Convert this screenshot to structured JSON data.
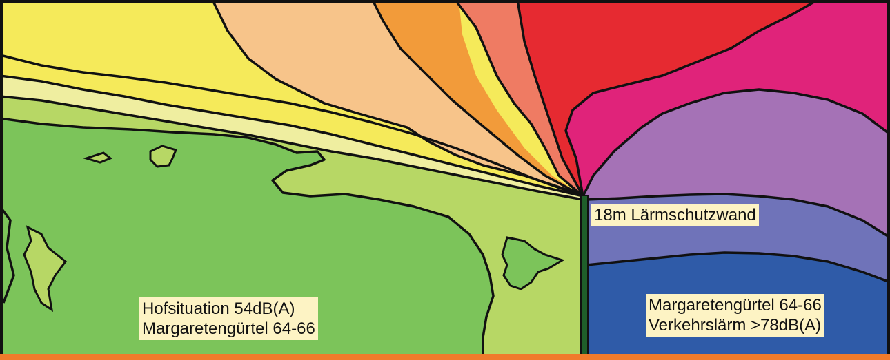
{
  "labels": {
    "wall": "18m Lärmschutzwand",
    "courtyard": [
      "Hofsituation 54dB(A)",
      "Margaretengürtel 64-66"
    ],
    "street": [
      "Margaretengürtel 64-66",
      "Verkehrslärm >78dB(A)"
    ]
  },
  "colors": {
    "yellow": "#f5ea5a",
    "pale_yellow": "#efeea0",
    "peach": "#f7c48a",
    "orange": "#f29b3a",
    "salmon": "#ef7b63",
    "red": "#e62a31",
    "magenta": "#e0237a",
    "violet": "#a572b6",
    "slate_blue": "#6f73b9",
    "blue": "#2f5ba8",
    "light_green": "#b7d765",
    "green": "#7cc45a",
    "wall": "#1f5f2a",
    "contour": "#111111",
    "label_bg": "#fdf3c4",
    "bottom_bar": "#f07b2b"
  }
}
